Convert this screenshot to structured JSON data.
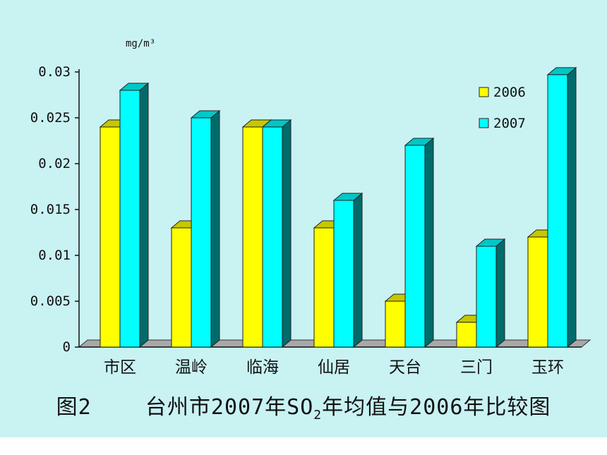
{
  "caption": {
    "figure_no": "图2",
    "text_before": "台州市2007年SO",
    "subscript": "2",
    "text_after": "年均值与2006年比较图"
  },
  "colors": {
    "background": "#c9f2f3",
    "series_2006": "#ffff00",
    "series_2007": "#00ffff",
    "axis": "#111111"
  },
  "chart_data": {
    "type": "bar",
    "title": "",
    "xlabel": "",
    "ylabel": "mg/m³",
    "ylim": [
      0,
      0.03
    ],
    "yticks": [
      "0",
      "0.005",
      "0.01",
      "0.015",
      "0.02",
      "0.025",
      "0.03"
    ],
    "grid": false,
    "legend_position": "top-right",
    "style": "3d-clustered-columns",
    "categories": [
      "市区",
      "温岭",
      "临海",
      "仙居",
      "天台",
      "三门",
      "玉环"
    ],
    "series": [
      {
        "name": "2006",
        "values": [
          0.024,
          0.013,
          0.024,
          0.013,
          0.005,
          0.0027,
          0.012
        ]
      },
      {
        "name": "2007",
        "values": [
          0.028,
          0.025,
          0.024,
          0.016,
          0.022,
          0.011,
          0.0297
        ]
      }
    ]
  }
}
